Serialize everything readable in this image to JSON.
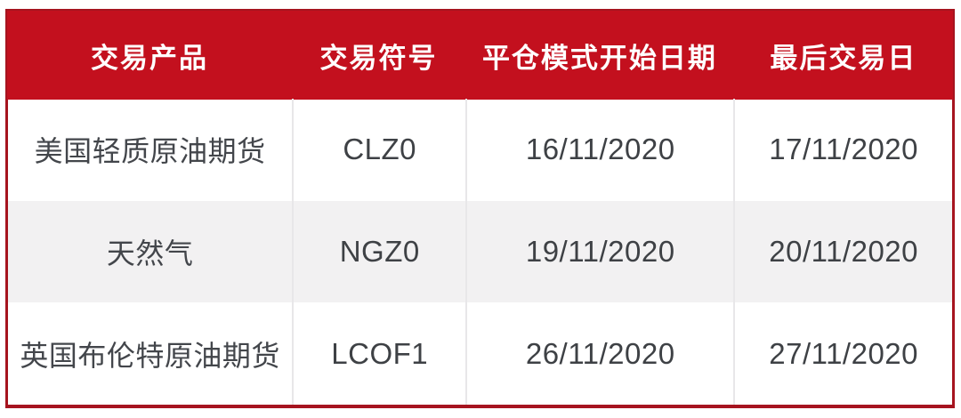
{
  "table": {
    "columns": [
      {
        "label": "交易产品"
      },
      {
        "label": "交易符号"
      },
      {
        "label": "平仓模式开始日期"
      },
      {
        "label": "最后交易日"
      }
    ],
    "rows": [
      {
        "product": "美国轻质原油期货",
        "symbol": "CLZ0",
        "close_mode_start": "16/11/2020",
        "last_trading_day": "17/11/2020"
      },
      {
        "product": "天然气",
        "symbol": "NGZ0",
        "close_mode_start": "19/11/2020",
        "last_trading_day": "20/11/2020"
      },
      {
        "product": "英国布伦特原油期货",
        "symbol": "LCOF1",
        "close_mode_start": "26/11/2020",
        "last_trading_day": "27/11/2020"
      }
    ]
  },
  "colors": {
    "header_bg": "#C3101E",
    "outer_border": "#A6141F",
    "alt_row_bg": "#F2F1F2",
    "column_divider": "#E8E7E9",
    "header_text": "#FFFFFF",
    "body_text": "#43464B"
  },
  "chart_data": {
    "type": "table",
    "columns": [
      "交易产品",
      "交易符号",
      "平仓模式开始日期",
      "最后交易日"
    ],
    "rows": [
      [
        "美国轻质原油期货",
        "CLZ0",
        "16/11/2020",
        "17/11/2020"
      ],
      [
        "天然气",
        "NGZ0",
        "19/11/2020",
        "20/11/2020"
      ],
      [
        "英国布伦特原油期货",
        "LCOF1",
        "26/11/2020",
        "27/11/2020"
      ]
    ]
  }
}
